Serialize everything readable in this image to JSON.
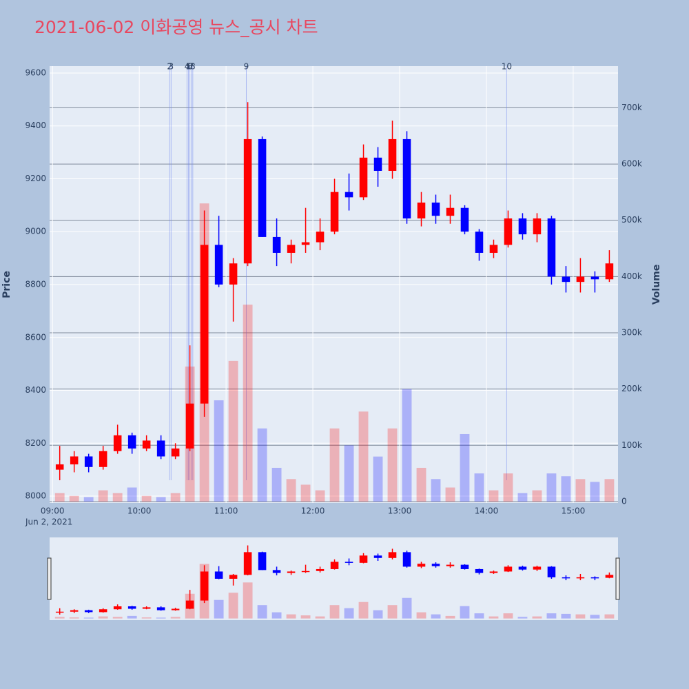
{
  "chart_data": {
    "type": "candlestick",
    "title": "2021-06-02 이화공영 뉴스_공시 차트",
    "x_title_date": "Jun 2, 2021",
    "y_title": "Price",
    "y2_title": "Volume",
    "x": [
      "09:00",
      "09:10",
      "09:20",
      "09:30",
      "09:40",
      "09:50",
      "10:00",
      "10:10",
      "10:20",
      "10:30",
      "10:40",
      "10:50",
      "11:00",
      "11:10",
      "11:20",
      "11:30",
      "11:40",
      "11:50",
      "12:00",
      "12:10",
      "12:20",
      "12:30",
      "12:40",
      "12:50",
      "13:00",
      "13:10",
      "13:20",
      "13:30",
      "13:40",
      "13:50",
      "14:00",
      "14:10",
      "14:20",
      "14:30",
      "14:40",
      "14:50",
      "15:00",
      "15:10",
      "15:20"
    ],
    "open": [
      8100,
      8120,
      8150,
      8110,
      8170,
      8230,
      8180,
      8210,
      8150,
      8180,
      8350,
      8950,
      8800,
      8880,
      9350,
      8980,
      8920,
      8950,
      8960,
      9000,
      9150,
      9130,
      9280,
      9230,
      9350,
      9050,
      9110,
      9060,
      9090,
      9000,
      8920,
      8950,
      9050,
      8990,
      9050,
      8830,
      8810,
      8830,
      8820
    ],
    "high": [
      8190,
      8170,
      8160,
      8190,
      8270,
      8240,
      8230,
      8230,
      8200,
      8570,
      9080,
      9060,
      8900,
      9490,
      9360,
      9050,
      8970,
      9090,
      9050,
      9200,
      9220,
      9330,
      9320,
      9420,
      9380,
      9150,
      9140,
      9140,
      9100,
      9010,
      8970,
      9080,
      9070,
      9070,
      9060,
      8870,
      8900,
      8850,
      8930
    ],
    "low": [
      8060,
      8090,
      8090,
      8100,
      8160,
      8160,
      8170,
      8140,
      8140,
      8170,
      8300,
      8790,
      8660,
      8870,
      8980,
      8870,
      8880,
      8920,
      8930,
      8990,
      9080,
      9120,
      9170,
      9200,
      9030,
      9020,
      9030,
      9030,
      8990,
      8890,
      8900,
      8940,
      8970,
      8960,
      8800,
      8770,
      8770,
      8770,
      8810
    ],
    "close": [
      8120,
      8150,
      8110,
      8170,
      8230,
      8180,
      8210,
      8150,
      8180,
      8350,
      8950,
      8800,
      8880,
      9350,
      8980,
      8920,
      8950,
      8960,
      9000,
      9150,
      9130,
      9280,
      9230,
      9350,
      9050,
      9110,
      9060,
      9090,
      9000,
      8920,
      8950,
      9050,
      8990,
      9050,
      8830,
      8810,
      8830,
      8820,
      8880
    ],
    "volume": [
      15000,
      10000,
      8000,
      20000,
      15000,
      25000,
      10000,
      8000,
      15000,
      240000,
      530000,
      180000,
      250000,
      350000,
      130000,
      60000,
      40000,
      30000,
      20000,
      130000,
      100000,
      160000,
      80000,
      130000,
      200000,
      60000,
      40000,
      25000,
      120000,
      50000,
      20000,
      50000,
      15000,
      20000,
      50000,
      45000,
      40000,
      35000,
      40000
    ],
    "increasing_color": "#ff0000",
    "decreasing_color": "#0000ff",
    "annotations": [
      {
        "label": "2",
        "x": "10:21"
      },
      {
        "label": "3",
        "x": "10:22"
      },
      {
        "label": "4",
        "x": "10:33"
      },
      {
        "label": "5",
        "x": "10:34"
      },
      {
        "label": "6",
        "x": "10:35"
      },
      {
        "label": "7",
        "x": "10:36"
      },
      {
        "label": "8",
        "x": "10:37"
      },
      {
        "label": "9",
        "x": "11:14"
      },
      {
        "label": "10",
        "x": "14:14"
      }
    ],
    "xlim": [
      "08:58",
      "15:31"
    ],
    "xticks": [
      "09:00",
      "10:00",
      "11:00",
      "12:00",
      "13:00",
      "14:00",
      "15:00"
    ],
    "ylim": [
      7974,
      9626
    ],
    "yticks": [
      8000,
      8200,
      8400,
      8600,
      8800,
      9000,
      9200,
      9400,
      9600
    ],
    "y2lim": [
      -2500,
      774000
    ],
    "y2ticks": [
      0,
      {
        "value": 100000,
        "label": "100k"
      },
      {
        "value": 200000,
        "label": "200k"
      },
      {
        "value": 300000,
        "label": "300k"
      },
      {
        "value": 400000,
        "label": "400k"
      },
      {
        "value": 500000,
        "label": "500k"
      },
      {
        "value": 600000,
        "label": "600k"
      },
      {
        "value": 700000,
        "label": "700k"
      }
    ],
    "grid": true,
    "rangeslider": true
  }
}
